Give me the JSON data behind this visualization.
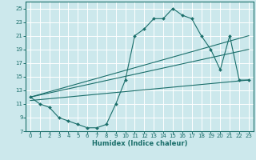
{
  "xlabel": "Humidex (Indice chaleur)",
  "bg_color": "#cce8ec",
  "grid_color": "#ffffff",
  "line_color": "#1a6e6a",
  "xlim": [
    -0.5,
    23.5
  ],
  "ylim": [
    7,
    26
  ],
  "xticks": [
    0,
    1,
    2,
    3,
    4,
    5,
    6,
    7,
    8,
    9,
    10,
    11,
    12,
    13,
    14,
    15,
    16,
    17,
    18,
    19,
    20,
    21,
    22,
    23
  ],
  "yticks": [
    7,
    9,
    11,
    13,
    15,
    17,
    19,
    21,
    23,
    25
  ],
  "main_x": [
    0,
    1,
    2,
    3,
    4,
    5,
    6,
    7,
    8,
    9,
    10,
    11,
    12,
    13,
    14,
    15,
    16,
    17,
    18,
    19,
    20,
    21,
    22,
    23
  ],
  "main_y": [
    12,
    11,
    10.5,
    9.0,
    8.5,
    8.0,
    7.5,
    7.5,
    8.0,
    11.0,
    14.5,
    21.0,
    22.0,
    23.5,
    23.5,
    25.0,
    24.0,
    23.5,
    21.0,
    19.0,
    16.0,
    21.0,
    14.5,
    14.5
  ],
  "trend1_x": [
    0,
    23
  ],
  "trend1_y": [
    12.0,
    21.0
  ],
  "trend2_x": [
    0,
    23
  ],
  "trend2_y": [
    11.5,
    14.5
  ],
  "trend3_x": [
    0,
    23
  ],
  "trend3_y": [
    12.0,
    19.0
  ],
  "tick_fontsize": 5.0,
  "xlabel_fontsize": 6.0
}
